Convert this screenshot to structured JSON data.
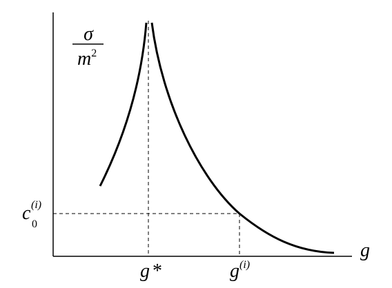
{
  "y_axis_label": {
    "numerator": "σ",
    "denominator": "m",
    "exponent": "2"
  },
  "x_axis_label": "g",
  "x_markers": [
    {
      "base": "g",
      "suffix": "*"
    },
    {
      "base": "g",
      "superscript": "(i)"
    }
  ],
  "y_marker": {
    "base": "c",
    "subscript": "0",
    "superscript": "(i)"
  }
}
